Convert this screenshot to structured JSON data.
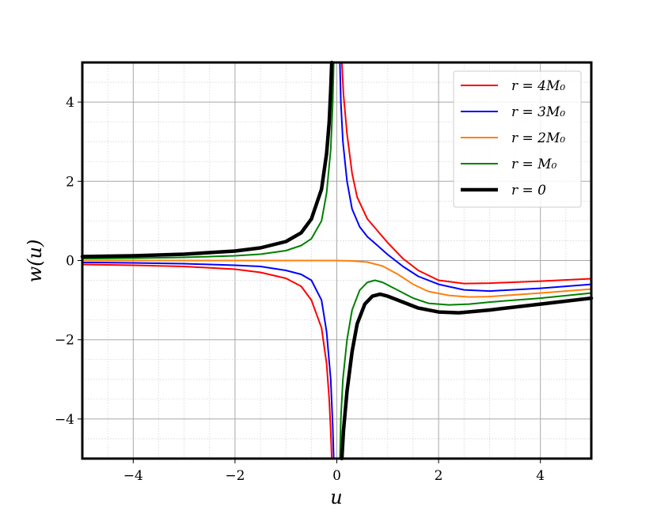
{
  "chart_data": {
    "type": "line",
    "title": "",
    "xlabel": "u",
    "ylabel": "w(u)",
    "xlim": [
      -5,
      5
    ],
    "ylim": [
      -5,
      5
    ],
    "x_ticks": [
      -4,
      -2,
      0,
      2,
      4
    ],
    "y_ticks": [
      -4,
      -2,
      0,
      2,
      4
    ],
    "x_tick_labels": [
      "−4",
      "−2",
      "0",
      "2",
      "4"
    ],
    "y_tick_labels": [
      "−4",
      "−2",
      "0",
      "2",
      "4"
    ],
    "grid": "major and minor",
    "legend_position": "top-right",
    "series": [
      {
        "name": "r = 4M0",
        "color": "#ff0000",
        "segments": [
          [
            [
              -5,
              -0.1
            ],
            [
              -4,
              -0.12
            ],
            [
              -3,
              -0.15
            ],
            [
              -2,
              -0.22
            ],
            [
              -1.5,
              -0.3
            ],
            [
              -1,
              -0.45
            ],
            [
              -0.7,
              -0.65
            ],
            [
              -0.5,
              -1.0
            ],
            [
              -0.3,
              -1.7
            ],
            [
              -0.2,
              -2.6
            ],
            [
              -0.15,
              -3.5
            ],
            [
              -0.12,
              -4.3
            ],
            [
              -0.1,
              -5
            ]
          ],
          [
            [
              0.1,
              5
            ],
            [
              0.13,
              4.2
            ],
            [
              0.2,
              3.2
            ],
            [
              0.3,
              2.2
            ],
            [
              0.4,
              1.6
            ],
            [
              0.6,
              1.05
            ],
            [
              0.8,
              0.75
            ],
            [
              1.0,
              0.45
            ],
            [
              1.3,
              0.05
            ],
            [
              1.6,
              -0.25
            ],
            [
              2.0,
              -0.5
            ],
            [
              2.5,
              -0.58
            ],
            [
              3.0,
              -0.57
            ],
            [
              4.0,
              -0.52
            ],
            [
              5,
              -0.46
            ]
          ]
        ]
      },
      {
        "name": "r = 3M0",
        "color": "#0000ff",
        "segments": [
          [
            [
              -5,
              -0.05
            ],
            [
              -4,
              -0.06
            ],
            [
              -3,
              -0.08
            ],
            [
              -2,
              -0.12
            ],
            [
              -1.5,
              -0.15
            ],
            [
              -1,
              -0.25
            ],
            [
              -0.7,
              -0.35
            ],
            [
              -0.5,
              -0.5
            ],
            [
              -0.3,
              -1.0
            ],
            [
              -0.2,
              -1.8
            ],
            [
              -0.12,
              -3.0
            ],
            [
              -0.08,
              -4.2
            ],
            [
              -0.06,
              -5
            ]
          ],
          [
            [
              0.06,
              5
            ],
            [
              0.08,
              4.0
            ],
            [
              0.12,
              3.0
            ],
            [
              0.2,
              2.0
            ],
            [
              0.3,
              1.3
            ],
            [
              0.45,
              0.85
            ],
            [
              0.6,
              0.6
            ],
            [
              0.8,
              0.38
            ],
            [
              1.0,
              0.15
            ],
            [
              1.3,
              -0.15
            ],
            [
              1.6,
              -0.4
            ],
            [
              2.0,
              -0.6
            ],
            [
              2.5,
              -0.74
            ],
            [
              3.0,
              -0.77
            ],
            [
              4.0,
              -0.7
            ],
            [
              5,
              -0.6
            ]
          ]
        ]
      },
      {
        "name": "r = 2M0",
        "color": "#ff7f0e",
        "segments": [
          [
            [
              -5,
              0
            ],
            [
              -2,
              0
            ],
            [
              -1,
              0
            ],
            [
              -0.5,
              0
            ],
            [
              0,
              0
            ],
            [
              0.3,
              -0.01
            ],
            [
              0.6,
              -0.04
            ],
            [
              0.9,
              -0.14
            ],
            [
              1.2,
              -0.35
            ],
            [
              1.5,
              -0.6
            ],
            [
              1.8,
              -0.78
            ],
            [
              2.2,
              -0.88
            ],
            [
              2.6,
              -0.92
            ],
            [
              3.0,
              -0.91
            ],
            [
              4.0,
              -0.82
            ],
            [
              5,
              -0.72
            ]
          ]
        ]
      },
      {
        "name": "r = M0",
        "color": "#008000",
        "segments": [
          [
            [
              -5,
              0.05
            ],
            [
              -4,
              0.06
            ],
            [
              -3,
              0.08
            ],
            [
              -2,
              0.12
            ],
            [
              -1.5,
              0.16
            ],
            [
              -1,
              0.25
            ],
            [
              -0.7,
              0.38
            ],
            [
              -0.5,
              0.55
            ],
            [
              -0.3,
              1.0
            ],
            [
              -0.2,
              1.7
            ],
            [
              -0.12,
              2.8
            ],
            [
              -0.08,
              4.0
            ],
            [
              -0.06,
              5
            ]
          ],
          [
            [
              0.06,
              -5
            ],
            [
              0.08,
              -4.0
            ],
            [
              0.12,
              -3.0
            ],
            [
              0.2,
              -2.0
            ],
            [
              0.3,
              -1.25
            ],
            [
              0.45,
              -0.75
            ],
            [
              0.6,
              -0.55
            ],
            [
              0.75,
              -0.5
            ],
            [
              0.9,
              -0.55
            ],
            [
              1.2,
              -0.75
            ],
            [
              1.5,
              -0.95
            ],
            [
              1.8,
              -1.08
            ],
            [
              2.2,
              -1.12
            ],
            [
              2.6,
              -1.1
            ],
            [
              3.0,
              -1.05
            ],
            [
              4.0,
              -0.95
            ],
            [
              5,
              -0.82
            ]
          ]
        ]
      },
      {
        "name": "r = 0",
        "color": "#000000",
        "segments": [
          [
            [
              -5,
              0.1
            ],
            [
              -4,
              0.12
            ],
            [
              -3,
              0.16
            ],
            [
              -2,
              0.24
            ],
            [
              -1.5,
              0.32
            ],
            [
              -1,
              0.48
            ],
            [
              -0.7,
              0.7
            ],
            [
              -0.5,
              1.05
            ],
            [
              -0.3,
              1.8
            ],
            [
              -0.2,
              2.7
            ],
            [
              -0.15,
              3.5
            ],
            [
              -0.12,
              4.3
            ],
            [
              -0.1,
              5
            ]
          ],
          [
            [
              0.1,
              -5
            ],
            [
              0.13,
              -4.3
            ],
            [
              0.2,
              -3.3
            ],
            [
              0.3,
              -2.3
            ],
            [
              0.4,
              -1.6
            ],
            [
              0.55,
              -1.1
            ],
            [
              0.7,
              -0.9
            ],
            [
              0.85,
              -0.85
            ],
            [
              1.0,
              -0.9
            ],
            [
              1.3,
              -1.05
            ],
            [
              1.6,
              -1.2
            ],
            [
              2.0,
              -1.3
            ],
            [
              2.4,
              -1.32
            ],
            [
              3.0,
              -1.25
            ],
            [
              4.0,
              -1.1
            ],
            [
              5,
              -0.95
            ]
          ]
        ]
      }
    ]
  },
  "legend": [
    {
      "label": "r = 4M₀",
      "color": "#ff0000",
      "width": 2
    },
    {
      "label": "r = 3M₀",
      "color": "#0000ff",
      "width": 2
    },
    {
      "label": "r = 2M₀",
      "color": "#ff7f0e",
      "width": 2
    },
    {
      "label": "r = M₀",
      "color": "#008000",
      "width": 2
    },
    {
      "label": "r = 0",
      "color": "#000000",
      "width": 4.5
    }
  ]
}
